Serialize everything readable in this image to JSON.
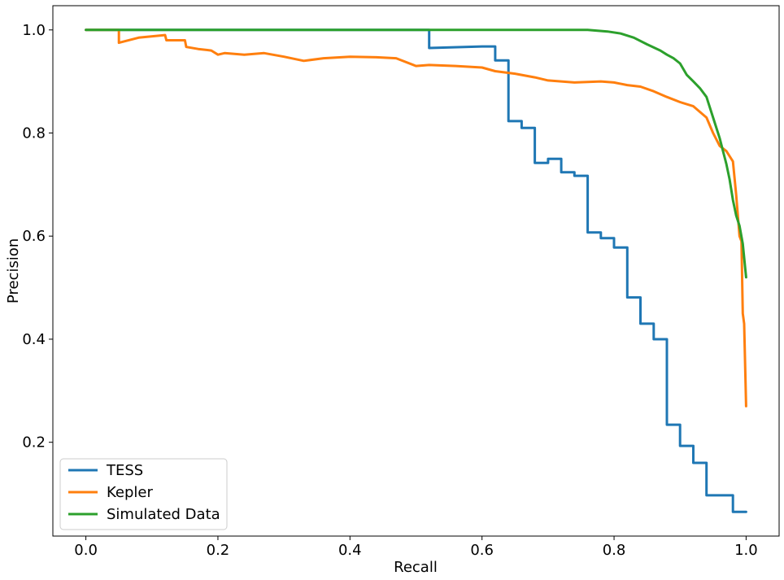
{
  "chart_data": {
    "type": "line",
    "title": "",
    "xlabel": "Recall",
    "ylabel": "Precision",
    "xlim": [
      -0.05,
      1.05
    ],
    "ylim": [
      0.018,
      1.047
    ],
    "xticks": [
      "0.0",
      "0.2",
      "0.4",
      "0.6",
      "0.8",
      "1.0"
    ],
    "yticks": [
      "0.2",
      "0.4",
      "0.6",
      "0.8",
      "1.0"
    ],
    "grid": false,
    "legend": "lower-left",
    "series": [
      {
        "name": "TESS",
        "color": "#1f77b4",
        "x": [
          0.0,
          0.52,
          0.52,
          0.6,
          0.62,
          0.62,
          0.64,
          0.64,
          0.66,
          0.66,
          0.68,
          0.68,
          0.7,
          0.7,
          0.72,
          0.72,
          0.74,
          0.74,
          0.76,
          0.76,
          0.78,
          0.78,
          0.8,
          0.8,
          0.82,
          0.82,
          0.84,
          0.84,
          0.86,
          0.86,
          0.88,
          0.88,
          0.9,
          0.9,
          0.92,
          0.92,
          0.94,
          0.94,
          0.96,
          0.96,
          0.98,
          0.98,
          1.0
        ],
        "y": [
          1.0,
          1.0,
          0.965,
          0.968,
          0.968,
          0.941,
          0.941,
          0.823,
          0.823,
          0.81,
          0.81,
          0.742,
          0.742,
          0.75,
          0.75,
          0.724,
          0.724,
          0.717,
          0.717,
          0.607,
          0.607,
          0.596,
          0.596,
          0.578,
          0.578,
          0.481,
          0.481,
          0.43,
          0.43,
          0.4,
          0.4,
          0.234,
          0.234,
          0.193,
          0.193,
          0.16,
          0.16,
          0.097,
          0.097,
          0.097,
          0.097,
          0.065,
          0.065
        ]
      },
      {
        "name": "Kepler",
        "color": "#ff7f0e",
        "x": [
          0.0,
          0.05,
          0.05,
          0.08,
          0.12,
          0.122,
          0.15,
          0.152,
          0.17,
          0.19,
          0.2,
          0.21,
          0.24,
          0.27,
          0.3,
          0.33,
          0.36,
          0.4,
          0.44,
          0.47,
          0.5,
          0.52,
          0.56,
          0.6,
          0.62,
          0.65,
          0.68,
          0.7,
          0.74,
          0.78,
          0.8,
          0.82,
          0.84,
          0.86,
          0.88,
          0.9,
          0.92,
          0.94,
          0.95,
          0.96,
          0.97,
          0.98,
          0.985,
          0.99,
          0.993,
          0.995,
          0.997,
          1.0
        ],
        "y": [
          1.0,
          1.0,
          0.975,
          0.985,
          0.99,
          0.98,
          0.98,
          0.967,
          0.963,
          0.96,
          0.952,
          0.955,
          0.952,
          0.955,
          0.948,
          0.94,
          0.945,
          0.948,
          0.947,
          0.945,
          0.93,
          0.932,
          0.93,
          0.927,
          0.92,
          0.915,
          0.908,
          0.902,
          0.898,
          0.9,
          0.898,
          0.893,
          0.89,
          0.881,
          0.87,
          0.86,
          0.852,
          0.83,
          0.8,
          0.775,
          0.765,
          0.745,
          0.68,
          0.6,
          0.59,
          0.45,
          0.43,
          0.27
        ]
      },
      {
        "name": "Simulated Data",
        "color": "#2ca02c",
        "x": [
          0.0,
          0.5,
          0.76,
          0.79,
          0.81,
          0.83,
          0.85,
          0.87,
          0.88,
          0.89,
          0.9,
          0.91,
          0.92,
          0.93,
          0.94,
          0.95,
          0.96,
          0.965,
          0.97,
          0.975,
          0.98,
          0.985,
          0.99,
          0.995,
          1.0
        ],
        "y": [
          1.0,
          1.0,
          1.0,
          0.997,
          0.993,
          0.985,
          0.972,
          0.96,
          0.952,
          0.945,
          0.935,
          0.913,
          0.9,
          0.887,
          0.87,
          0.83,
          0.79,
          0.765,
          0.74,
          0.71,
          0.67,
          0.64,
          0.62,
          0.585,
          0.52
        ]
      }
    ]
  }
}
